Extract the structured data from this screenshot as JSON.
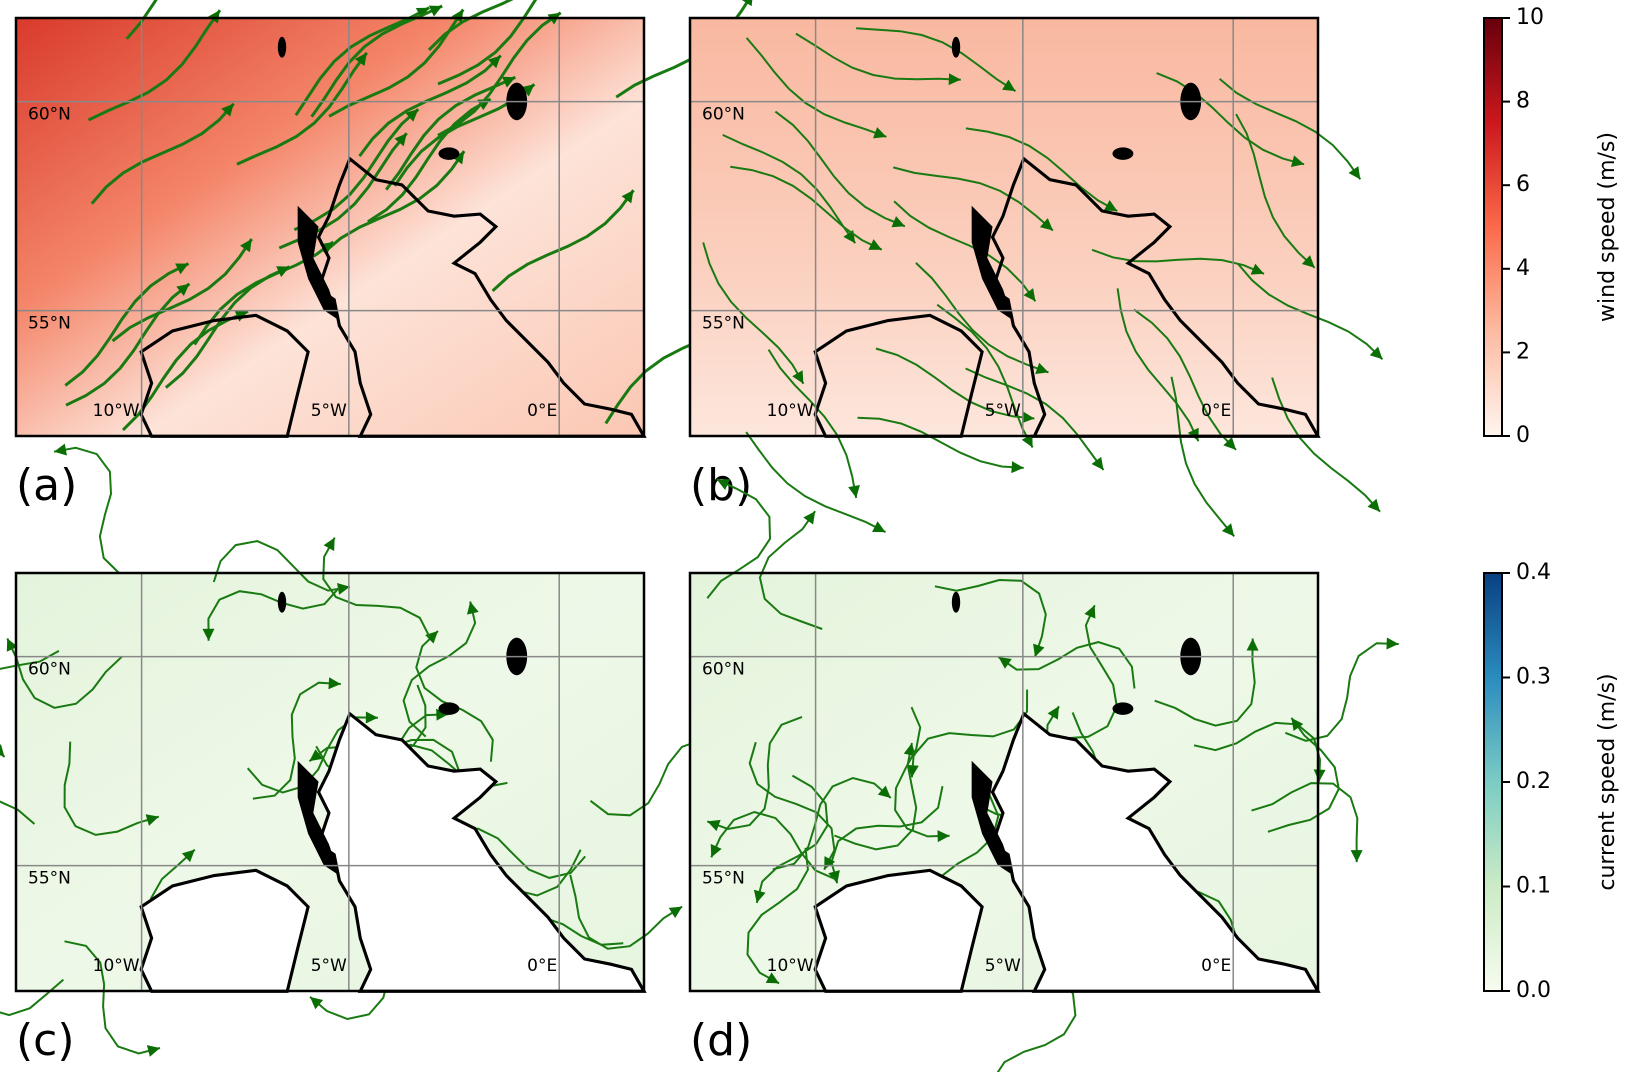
{
  "panels": [
    {
      "label": "(a)",
      "kind": "wind",
      "lat_labels": [
        "60°N",
        "55°N"
      ],
      "lon_labels": [
        "10°W",
        "5°W",
        "0°E"
      ]
    },
    {
      "label": "(b)",
      "kind": "wind",
      "lat_labels": [
        "60°N",
        "55°N"
      ],
      "lon_labels": [
        "10°W",
        "5°W",
        "0°E"
      ]
    },
    {
      "label": "(c)",
      "kind": "current",
      "lat_labels": [
        "60°N",
        "55°N"
      ],
      "lon_labels": [
        "10°W",
        "5°W",
        "0°E"
      ]
    },
    {
      "label": "(d)",
      "kind": "current",
      "lat_labels": [
        "60°N",
        "55°N"
      ],
      "lon_labels": [
        "10°W",
        "5°W",
        "0°E"
      ]
    }
  ],
  "colorbars": [
    {
      "label": "wind speed (m/s)",
      "lim": [
        0,
        10
      ],
      "ticks": [
        0,
        2,
        4,
        6,
        8,
        10
      ],
      "colors": [
        "#fff5f0",
        "#fcbba1",
        "#fb6a4a",
        "#cb181d",
        "#67000d"
      ]
    },
    {
      "label": "current speed (m/s)",
      "lim": [
        0,
        0.4
      ],
      "ticks": [
        {
          "value": 0,
          "label": "0.0"
        },
        0.1,
        0.2,
        0.3,
        0.4
      ],
      "colors": [
        "#f7fcf0",
        "#ccebc5",
        "#7bccc4",
        "#2b8cbe",
        "#084081"
      ]
    }
  ]
}
